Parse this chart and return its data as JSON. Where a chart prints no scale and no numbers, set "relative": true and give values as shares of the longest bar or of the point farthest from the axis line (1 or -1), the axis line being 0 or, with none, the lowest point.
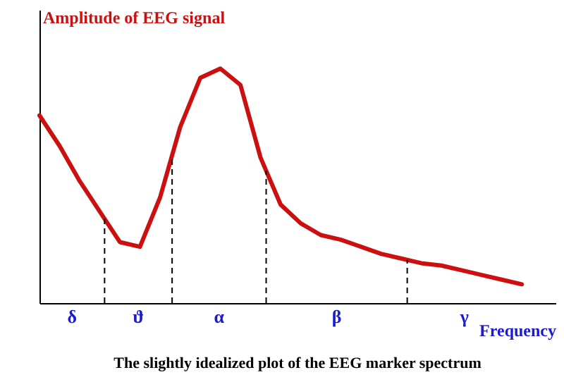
{
  "chart_data": {
    "type": "line",
    "title": "The slightly idealized plot of the EEG marker spectrum",
    "xlabel": "Frequency",
    "ylabel": "Amplitude of EEG signal",
    "relative": true,
    "marker": "none",
    "line_style": "solid",
    "categories": [
      null,
      null,
      null,
      null,
      null,
      null,
      null,
      null,
      null,
      null,
      null,
      null,
      null,
      null,
      null,
      null,
      null,
      null,
      null,
      null,
      null,
      null,
      null,
      null,
      null
    ],
    "series": [
      {
        "color": "#cc1010",
        "values": [
          0.8,
          0.67,
          0.52,
          0.39,
          0.26,
          0.24,
          0.45,
          0.75,
          0.96,
          1.0,
          0.93,
          0.62,
          0.42,
          0.34,
          0.29,
          0.27,
          0.24,
          0.21,
          0.19,
          0.17,
          0.16,
          0.14,
          0.12,
          0.1,
          0.08
        ]
      }
    ],
    "annotations": [
      "δ",
      "ϑ",
      "α",
      "β",
      "γ"
    ]
  }
}
